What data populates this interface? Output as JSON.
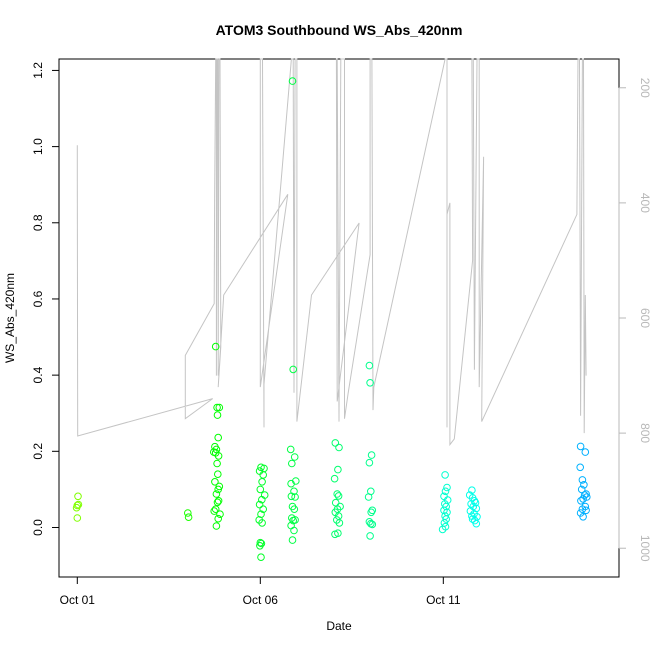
{
  "chart_data": {
    "type": "scatter",
    "title": "ATOM3 Southbound WS_Abs_420nm",
    "xlabel": "Date",
    "ylabel": "WS_Abs_420nm",
    "x_ticks": [
      "Oct 01",
      "Oct 06",
      "Oct 11"
    ],
    "x_tick_values": [
      1,
      6,
      11
    ],
    "xlim": [
      0.5,
      15.8
    ],
    "ylim": [
      -0.13,
      1.23
    ],
    "y_ticks": [
      0.0,
      0.2,
      0.4,
      0.6,
      0.8,
      1.0,
      1.2
    ],
    "y_tick_labels": [
      "0.0",
      "0.2",
      "0.4",
      "0.6",
      "0.8",
      "1.0",
      "1.2"
    ],
    "y2_ticks": [
      200,
      400,
      600,
      800,
      1000
    ],
    "y2_tick_labels": [
      "200",
      "400",
      "600",
      "800",
      "1000"
    ],
    "y2_lim": [
      1050,
      150
    ],
    "grid": false,
    "series": [
      {
        "kind": "points",
        "points": [
          [
            1.02,
            0.082
          ],
          [
            1.0,
            0.058
          ],
          [
            0.98,
            0.052
          ],
          [
            1.03,
            0.06
          ],
          [
            1.0,
            0.025
          ],
          [
            4.02,
            0.038
          ],
          [
            4.04,
            0.027
          ],
          [
            4.78,
            0.475
          ],
          [
            4.82,
            0.315
          ],
          [
            4.88,
            0.315
          ],
          [
            4.83,
            0.295
          ],
          [
            4.85,
            0.236
          ],
          [
            4.76,
            0.212
          ],
          [
            4.73,
            0.198
          ],
          [
            4.8,
            0.205
          ],
          [
            4.78,
            0.196
          ],
          [
            4.86,
            0.188
          ],
          [
            4.82,
            0.168
          ],
          [
            4.84,
            0.14
          ],
          [
            4.76,
            0.12
          ],
          [
            4.88,
            0.108
          ],
          [
            4.85,
            0.1
          ],
          [
            4.8,
            0.088
          ],
          [
            4.86,
            0.07
          ],
          [
            4.83,
            0.066
          ],
          [
            4.78,
            0.048
          ],
          [
            4.74,
            0.043
          ],
          [
            4.9,
            0.035
          ],
          [
            4.85,
            0.023
          ],
          [
            4.8,
            0.004
          ],
          [
            6.02,
            0.158
          ],
          [
            5.98,
            0.148
          ],
          [
            6.08,
            0.138
          ],
          [
            6.1,
            0.155
          ],
          [
            6.05,
            0.12
          ],
          [
            6.0,
            0.1
          ],
          [
            6.12,
            0.085
          ],
          [
            6.04,
            0.073
          ],
          [
            5.98,
            0.06
          ],
          [
            6.08,
            0.048
          ],
          [
            6.02,
            0.035
          ],
          [
            5.97,
            0.02
          ],
          [
            6.05,
            0.012
          ],
          [
            5.99,
            -0.048
          ],
          [
            6.03,
            -0.042
          ],
          [
            6.0,
            -0.04
          ],
          [
            6.02,
            -0.078
          ],
          [
            6.88,
            1.172
          ],
          [
            6.9,
            0.415
          ],
          [
            6.83,
            0.205
          ],
          [
            6.94,
            0.185
          ],
          [
            6.86,
            0.168
          ],
          [
            6.97,
            0.122
          ],
          [
            6.84,
            0.115
          ],
          [
            6.92,
            0.095
          ],
          [
            6.85,
            0.082
          ],
          [
            6.95,
            0.08
          ],
          [
            6.88,
            0.055
          ],
          [
            6.93,
            0.048
          ],
          [
            6.86,
            0.025
          ],
          [
            6.9,
            0.018
          ],
          [
            6.95,
            0.02
          ],
          [
            6.84,
            0.005
          ],
          [
            6.92,
            -0.008
          ],
          [
            6.88,
            -0.033
          ],
          [
            8.05,
            0.222
          ],
          [
            8.15,
            0.21
          ],
          [
            8.12,
            0.152
          ],
          [
            8.03,
            0.128
          ],
          [
            8.1,
            0.088
          ],
          [
            8.14,
            0.083
          ],
          [
            8.06,
            0.065
          ],
          [
            8.18,
            0.055
          ],
          [
            8.11,
            0.048
          ],
          [
            8.05,
            0.04
          ],
          [
            8.14,
            0.03
          ],
          [
            8.09,
            0.02
          ],
          [
            8.16,
            0.012
          ],
          [
            8.04,
            -0.018
          ],
          [
            8.12,
            -0.015
          ],
          [
            8.98,
            0.425
          ],
          [
            9.0,
            0.38
          ],
          [
            9.04,
            0.19
          ],
          [
            8.98,
            0.17
          ],
          [
            9.02,
            0.095
          ],
          [
            8.96,
            0.08
          ],
          [
            9.06,
            0.045
          ],
          [
            9.03,
            0.04
          ],
          [
            8.98,
            0.015
          ],
          [
            9.02,
            0.01
          ],
          [
            9.06,
            0.008
          ],
          [
            9.0,
            -0.022
          ],
          [
            11.05,
            0.138
          ],
          [
            11.1,
            0.105
          ],
          [
            11.06,
            0.095
          ],
          [
            11.02,
            0.082
          ],
          [
            11.12,
            0.072
          ],
          [
            11.04,
            0.062
          ],
          [
            11.08,
            0.055
          ],
          [
            11.02,
            0.045
          ],
          [
            11.1,
            0.04
          ],
          [
            11.05,
            0.03
          ],
          [
            11.08,
            0.022
          ],
          [
            11.03,
            0.012
          ],
          [
            11.06,
            0.002
          ],
          [
            10.98,
            -0.005
          ],
          [
            11.78,
            0.098
          ],
          [
            11.72,
            0.085
          ],
          [
            11.8,
            0.078
          ],
          [
            11.85,
            0.07
          ],
          [
            11.88,
            0.065
          ],
          [
            11.76,
            0.062
          ],
          [
            11.82,
            0.055
          ],
          [
            11.9,
            0.05
          ],
          [
            11.74,
            0.043
          ],
          [
            11.84,
            0.036
          ],
          [
            11.78,
            0.03
          ],
          [
            11.92,
            0.028
          ],
          [
            11.8,
            0.022
          ],
          [
            11.86,
            0.018
          ],
          [
            11.9,
            0.01
          ],
          [
            14.75,
            0.213
          ],
          [
            14.88,
            0.198
          ],
          [
            14.74,
            0.158
          ],
          [
            14.8,
            0.125
          ],
          [
            14.84,
            0.112
          ],
          [
            14.78,
            0.1
          ],
          [
            14.9,
            0.088
          ],
          [
            14.86,
            0.085
          ],
          [
            14.92,
            0.08
          ],
          [
            14.82,
            0.075
          ],
          [
            14.76,
            0.07
          ],
          [
            14.88,
            0.055
          ],
          [
            14.8,
            0.048
          ],
          [
            14.9,
            0.045
          ],
          [
            14.75,
            0.038
          ],
          [
            14.82,
            0.028
          ]
        ]
      },
      {
        "kind": "altitude-trace",
        "axis": "right",
        "points": [
          [
            1.0,
            300
          ],
          [
            1.0,
            360
          ],
          [
            1.01,
            805
          ],
          [
            4.7,
            740
          ],
          [
            3.95,
            775
          ],
          [
            3.95,
            665
          ],
          [
            4.74,
            575
          ],
          [
            4.75,
            400
          ],
          [
            4.78,
            150
          ],
          [
            4.8,
            150
          ],
          [
            4.8,
            700
          ],
          [
            4.82,
            150
          ],
          [
            4.84,
            150
          ],
          [
            4.85,
            700
          ],
          [
            4.87,
            150
          ],
          [
            4.9,
            150
          ],
          [
            4.92,
            650
          ],
          [
            4.85,
            720
          ],
          [
            5.0,
            560
          ],
          [
            6.75,
            385
          ],
          [
            6.0,
            720
          ],
          [
            6.0,
            150
          ],
          [
            6.06,
            150
          ],
          [
            6.1,
            790
          ],
          [
            6.1,
            715
          ],
          [
            6.85,
            150
          ],
          [
            6.9,
            150
          ],
          [
            6.92,
            730
          ],
          [
            6.95,
            150
          ],
          [
            7.0,
            150
          ],
          [
            7.0,
            780
          ],
          [
            7.4,
            560
          ],
          [
            8.7,
            435
          ],
          [
            8.1,
            745
          ],
          [
            8.08,
            150
          ],
          [
            8.1,
            150
          ],
          [
            8.15,
            780
          ],
          [
            8.2,
            150
          ],
          [
            8.3,
            150
          ],
          [
            8.3,
            775
          ],
          [
            8.4,
            730
          ],
          [
            9.0,
            490
          ],
          [
            9.0,
            150
          ],
          [
            9.05,
            150
          ],
          [
            9.08,
            760
          ],
          [
            9.1,
            720
          ],
          [
            11.05,
            150
          ],
          [
            11.1,
            150
          ],
          [
            11.1,
            790
          ],
          [
            11.1,
            420
          ],
          [
            11.18,
            400
          ],
          [
            11.18,
            820
          ],
          [
            11.3,
            810
          ],
          [
            11.8,
            500
          ],
          [
            11.78,
            150
          ],
          [
            11.82,
            150
          ],
          [
            11.85,
            690
          ],
          [
            11.92,
            150
          ],
          [
            11.98,
            150
          ],
          [
            11.98,
            720
          ],
          [
            12.0,
            660
          ],
          [
            12.1,
            320
          ],
          [
            12.05,
            780
          ],
          [
            14.65,
            420
          ],
          [
            14.68,
            150
          ],
          [
            14.72,
            150
          ],
          [
            14.75,
            770
          ],
          [
            14.8,
            150
          ],
          [
            14.83,
            150
          ],
          [
            14.85,
            800
          ],
          [
            14.88,
            560
          ],
          [
            14.9,
            700
          ]
        ]
      }
    ]
  }
}
